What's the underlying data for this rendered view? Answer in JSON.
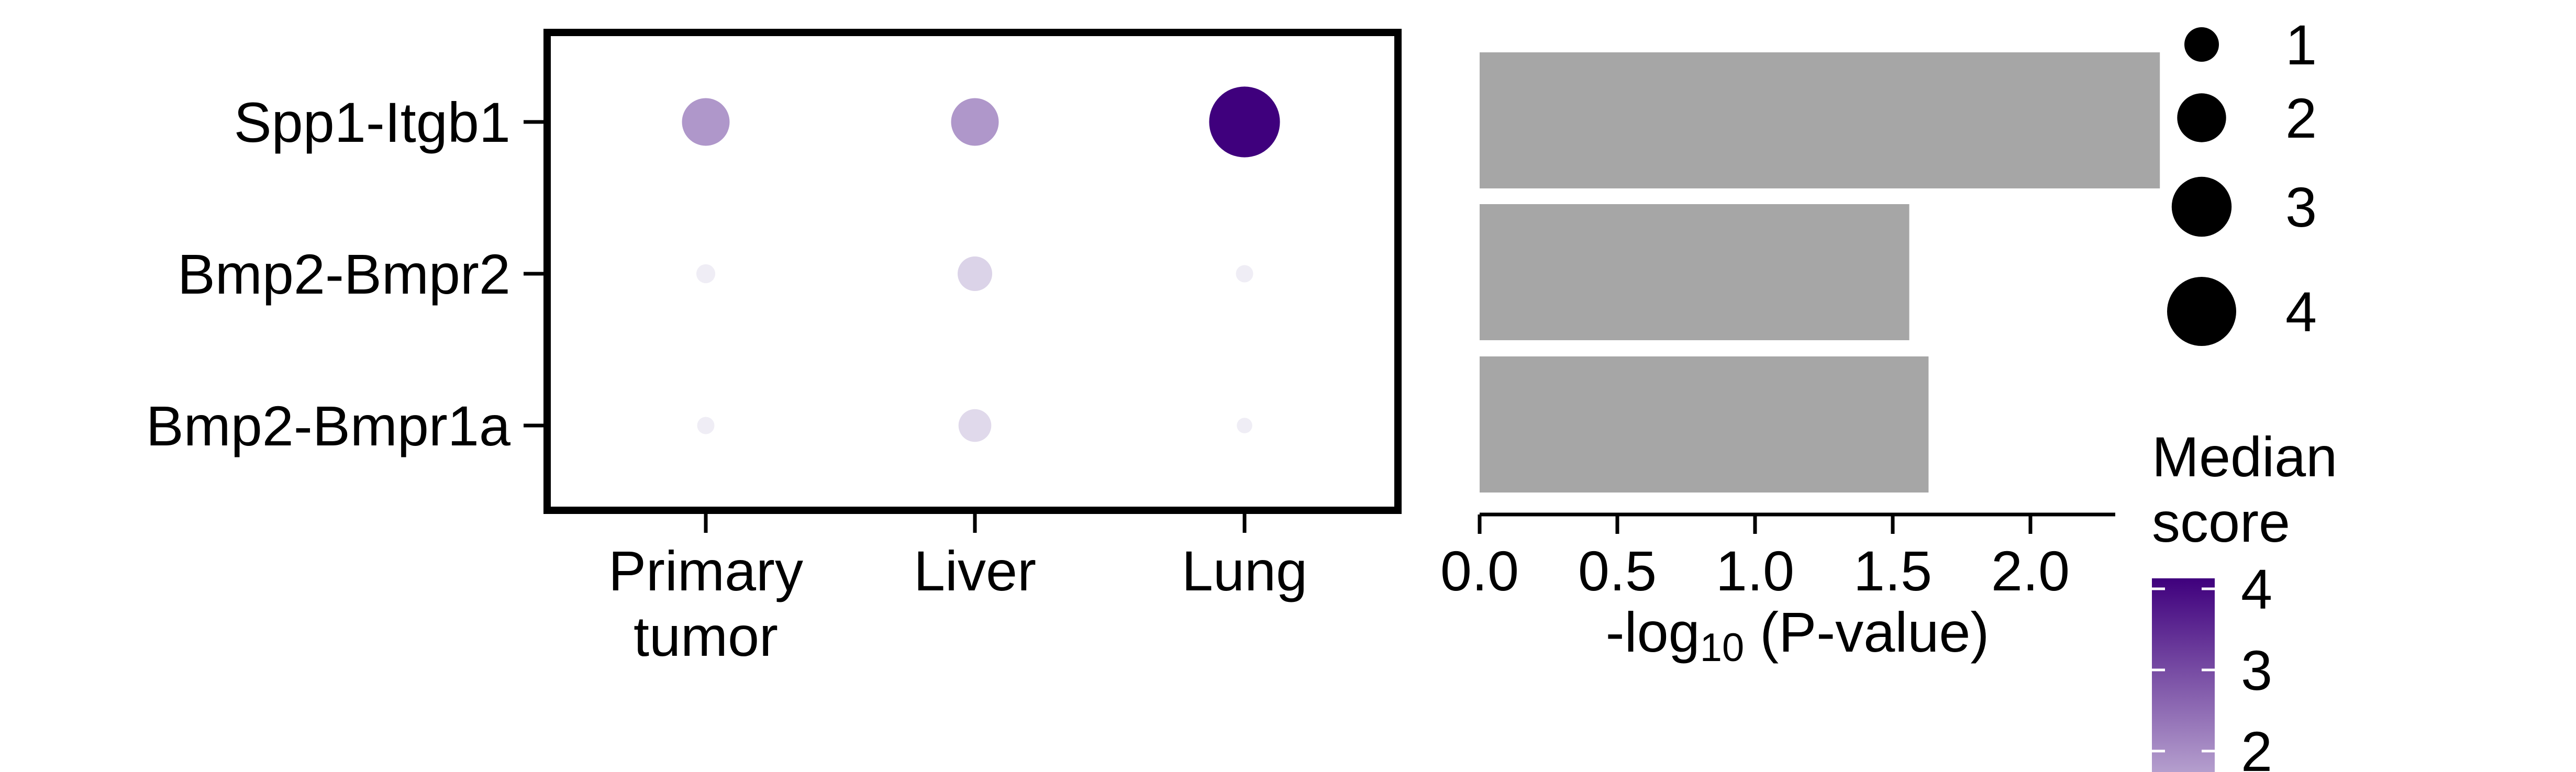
{
  "chart_data": [
    {
      "type": "dot",
      "categories_x": [
        "Primary tumor",
        "Liver",
        "Lung"
      ],
      "categories_x_lines": [
        [
          "Primary",
          "tumor"
        ],
        [
          "Liver"
        ],
        [
          "Lung"
        ]
      ],
      "categories_y": [
        "Spp1-Itgb1",
        "Bmp2-Bmpr2",
        "Bmp2-Bmpr1a"
      ],
      "points": [
        {
          "pair": "Spp1-Itgb1",
          "site": "Primary tumor",
          "size": 1.9,
          "score": 1.9
        },
        {
          "pair": "Spp1-Itgb1",
          "site": "Liver",
          "size": 1.9,
          "score": 1.9
        },
        {
          "pair": "Spp1-Itgb1",
          "site": "Lung",
          "size": 4.2,
          "score": 4.2
        },
        {
          "pair": "Bmp2-Bmpr2",
          "site": "Primary tumor",
          "size": 0.3,
          "score": 0.6
        },
        {
          "pair": "Bmp2-Bmpr2",
          "site": "Liver",
          "size": 1.0,
          "score": 1.0
        },
        {
          "pair": "Bmp2-Bmpr2",
          "site": "Lung",
          "size": 0.25,
          "score": 0.6
        },
        {
          "pair": "Bmp2-Bmpr1a",
          "site": "Primary tumor",
          "size": 0.25,
          "score": 0.6
        },
        {
          "pair": "Bmp2-Bmpr1a",
          "site": "Liver",
          "size": 0.9,
          "score": 0.9
        },
        {
          "pair": "Bmp2-Bmpr1a",
          "site": "Lung",
          "size": 0.2,
          "score": 0.6
        }
      ],
      "size_legend": {
        "values": [
          "1",
          "2",
          "3",
          "4"
        ]
      },
      "color_legend": {
        "title_lines": [
          "Median",
          "score"
        ],
        "ticks": [
          "4",
          "3",
          "2"
        ],
        "low_color": "#efedf5",
        "high_color": "#3f007d"
      }
    },
    {
      "type": "bar",
      "orientation": "horizontal",
      "categories": [
        "Spp1-Itgb1",
        "Bmp2-Bmpr2",
        "Bmp2-Bmpr1a"
      ],
      "values": [
        2.47,
        1.56,
        1.63
      ],
      "color": "#a6a6a6",
      "xlim": [
        0,
        2.5
      ],
      "xticks": [
        "0.0",
        "0.5",
        "1.0",
        "1.5",
        "2.0"
      ],
      "xlabel": {
        "prefix": "-log",
        "subscript": "10",
        "suffix": " (P-value)"
      }
    }
  ]
}
